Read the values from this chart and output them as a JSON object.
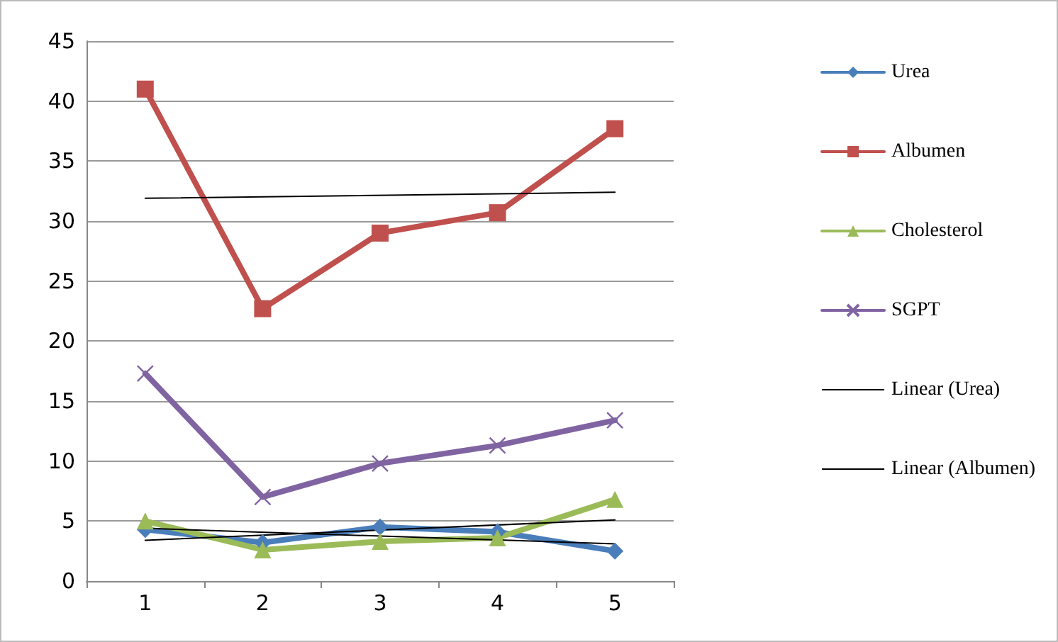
{
  "chart_data": {
    "type": "line",
    "categories": [
      "1",
      "2",
      "3",
      "4",
      "5"
    ],
    "ylim": [
      0,
      45
    ],
    "yticks": [
      0,
      5,
      10,
      15,
      20,
      25,
      30,
      35,
      40,
      45
    ],
    "grid": "y",
    "legend": "right",
    "series": [
      {
        "name": "Urea",
        "color": "#4a7ebb",
        "marker": "diamond",
        "values": [
          4.3,
          3.2,
          4.5,
          4.1,
          2.5
        ]
      },
      {
        "name": "Albumen",
        "color": "#c0504d",
        "marker": "square",
        "values": [
          41,
          22.7,
          29,
          30.7,
          37.7
        ]
      },
      {
        "name": "Cholesterol",
        "color": "#9bbb59",
        "marker": "triangle",
        "values": [
          5,
          2.6,
          3.3,
          3.6,
          6.8
        ]
      },
      {
        "name": "SGPT",
        "color": "#8064a2",
        "marker": "cross",
        "values": [
          17.3,
          7,
          9.8,
          11.3,
          13.4
        ]
      },
      {
        "name": "Linear (Urea)",
        "color": "#000000",
        "marker": "none",
        "x": [
          "1",
          "5"
        ],
        "values": [
          4.4,
          3.1
        ]
      },
      {
        "name": "Linear (Albumen)",
        "color": "#000000",
        "marker": "none",
        "x": [
          "1",
          "5"
        ],
        "values": [
          31.9,
          32.4
        ]
      },
      {
        "color": "#000000",
        "marker": "none",
        "x": [
          "1",
          "5"
        ],
        "values": [
          3.4,
          5.1
        ]
      }
    ]
  }
}
